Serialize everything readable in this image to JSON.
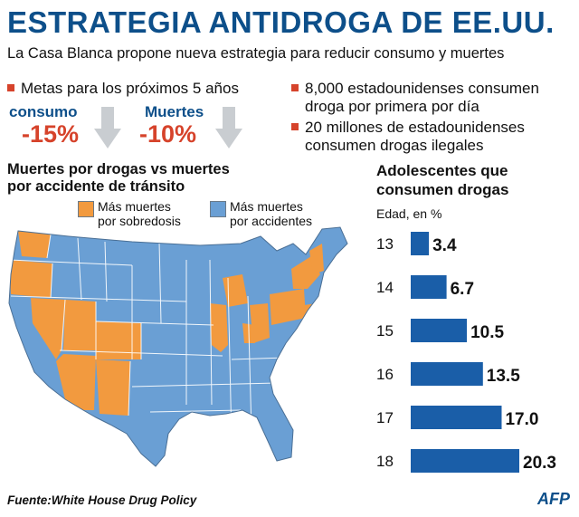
{
  "header": {
    "title": "ESTRATEGIA ANTIDROGA DE EE.UU.",
    "subtitle": "La Casa Blanca propone nueva estrategia para reducir consumo y muertes"
  },
  "goals": {
    "heading": "Metas para los próximos 5 años",
    "consumo_label": "consumo",
    "consumo_value": "-15%",
    "muertes_label": "Muertes",
    "muertes_value": "-10%"
  },
  "facts": [
    {
      "line1": "8,000 estadounidenses consumen",
      "line2": "droga por primera por día"
    },
    {
      "line1": "20 millones de estadounidenses",
      "line2": "consumen drogas ilegales"
    }
  ],
  "map": {
    "title_line1": "Muertes por drogas vs muertes",
    "title_line2": "por accidente de tránsito",
    "legend": [
      {
        "line1": "Más muertes",
        "line2": "por sobredosis",
        "color": "#f29a3f"
      },
      {
        "line1": "Más muertes",
        "line2": "por accidentes",
        "color": "#6a9fd4"
      }
    ]
  },
  "chart_data": {
    "type": "bar",
    "orientation": "horizontal",
    "title": "Adolescentes que consumen drogas",
    "subtitle": "Edad, en %",
    "categories": [
      "13",
      "14",
      "15",
      "16",
      "17",
      "18"
    ],
    "values": [
      3.4,
      6.7,
      10.5,
      13.5,
      17.0,
      20.3
    ],
    "value_labels": [
      "3.4",
      "6.7",
      "10.5",
      "13.5",
      "17.0",
      "20.3"
    ],
    "bar_color": "#1a5ea8",
    "grid": false,
    "xlim": [
      0,
      20.3
    ]
  },
  "footer": {
    "source": "Fuente:White House Drug Policy",
    "credit": "AFP"
  }
}
